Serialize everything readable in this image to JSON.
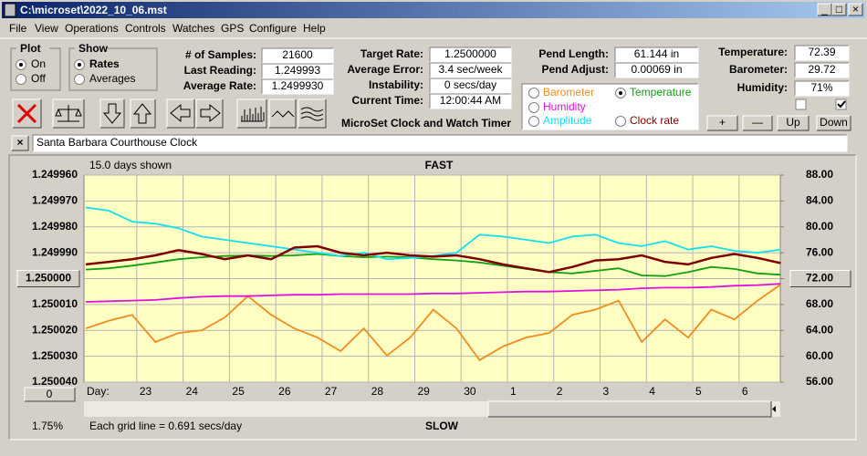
{
  "window": {
    "title": "C:\\microset\\2022_10_06.mst"
  },
  "menu": [
    "File",
    "View",
    "Operations",
    "Controls",
    "Watches",
    "GPS",
    "Configure",
    "Help"
  ],
  "plot": {
    "label": "Plot",
    "options": [
      "On",
      "Off"
    ]
  },
  "show": {
    "label": "Show",
    "options": [
      "Rates",
      "Averages"
    ]
  },
  "fields": [
    {
      "label": "# of Samples:",
      "value": "21600"
    },
    {
      "label": "Last Reading:",
      "value": "1.249993"
    },
    {
      "label": "Average Rate:",
      "value": "1.2499930"
    },
    {
      "label": "Target Rate:",
      "value": "1.2500000"
    },
    {
      "label": "Average Error:",
      "value": "3.4 sec/week"
    },
    {
      "label": "Instability:",
      "value": "0 secs/day"
    },
    {
      "label": "Current Time:",
      "value": "12:00:44 AM"
    },
    {
      "label": "Pend Length:",
      "value": "61.144 in"
    },
    {
      "label": "Pend Adjust:",
      "value": "0.00069 in"
    },
    {
      "label": "Temperature:",
      "value": "72.39"
    },
    {
      "label": "Barometer:",
      "value": "29.72"
    },
    {
      "label": "Humidity:",
      "value": "71%"
    }
  ],
  "app_title": "MicroSet Clock and Watch Timer",
  "buttons": [
    "+",
    "—",
    "Up",
    "Down"
  ],
  "clock_name": "Santa Barbara Courthouse Clock",
  "chart_data": {
    "type": "line",
    "days_shown": "15.0 days shown",
    "top_label": "FAST",
    "bottom_label": "SLOW",
    "x_label": "Day:",
    "footnote": "Each grid line = 0.691 secs/day",
    "offset_button": "0",
    "percent": "1.75%",
    "grid": true,
    "xlim": [
      21.86,
      36.89
    ],
    "xticks": [
      23,
      24,
      25,
      26,
      27,
      28,
      29,
      30,
      {
        "value": 31,
        "label": "1"
      },
      {
        "value": 32,
        "label": "2"
      },
      {
        "value": 33,
        "label": "3"
      },
      {
        "value": 34,
        "label": "4"
      },
      {
        "value": 35,
        "label": "5"
      },
      {
        "value": 36,
        "label": "6"
      }
    ],
    "ylim": [
      1.25004,
      1.24996
    ],
    "yticks": [
      {
        "value": 1.24996,
        "label": "1.249960"
      },
      {
        "value": 1.24997,
        "label": "1.249970"
      },
      {
        "value": 1.24998,
        "label": "1.249980"
      },
      {
        "value": 1.24999,
        "label": "1.249990"
      },
      {
        "value": 1.25,
        "label": "1.250000"
      },
      {
        "value": 1.25001,
        "label": "1.250010"
      },
      {
        "value": 1.25002,
        "label": "1.250020"
      },
      {
        "value": 1.25003,
        "label": "1.250030"
      },
      {
        "value": 1.25004,
        "label": "1.250040"
      }
    ],
    "y2lim": [
      56,
      88
    ],
    "y2ticks": [
      {
        "value": 88,
        "label": "88.00"
      },
      {
        "value": 84,
        "label": "84.00"
      },
      {
        "value": 80,
        "label": "80.00"
      },
      {
        "value": 76,
        "label": "76.00"
      },
      {
        "value": 72,
        "label": "72.00"
      },
      {
        "value": 68,
        "label": "68.00"
      },
      {
        "value": 64,
        "label": "64.00"
      },
      {
        "value": 60,
        "label": "60.00"
      },
      {
        "value": 56,
        "label": "56.00"
      }
    ],
    "x": [
      21.9,
      22.4,
      22.9,
      23.4,
      23.9,
      24.4,
      24.9,
      25.4,
      25.9,
      26.4,
      26.9,
      27.4,
      27.9,
      28.4,
      28.9,
      29.4,
      29.9,
      30.4,
      30.9,
      31.4,
      31.9,
      32.4,
      32.9,
      33.4,
      33.9,
      34.4,
      34.9,
      35.4,
      35.9,
      36.4,
      36.9
    ],
    "series": [
      {
        "name": "Barometer",
        "color": "#f08c20",
        "axis": "y2",
        "values": [
          64.3,
          65.5,
          66.4,
          62.2,
          63.6,
          64.0,
          66.0,
          69.3,
          66.4,
          64.3,
          62.9,
          60.8,
          64.3,
          60.1,
          62.9,
          67.2,
          64.3,
          59.4,
          61.5,
          62.9,
          63.6,
          66.4,
          67.2,
          68.6,
          62.2,
          65.7,
          62.9,
          67.2,
          65.7,
          68.6,
          71.1
        ]
      },
      {
        "name": "Temperature",
        "color": "#10a010",
        "axis": "y2",
        "values": [
          73.4,
          73.6,
          74.0,
          74.5,
          75.0,
          75.3,
          75.5,
          75.6,
          75.5,
          75.6,
          75.8,
          75.5,
          75.3,
          75.4,
          75.3,
          75.0,
          74.8,
          74.5,
          74.0,
          73.5,
          73.0,
          72.8,
          73.2,
          73.6,
          72.5,
          72.4,
          73.0,
          73.8,
          73.5,
          72.8,
          72.6
        ]
      },
      {
        "name": "Humidity",
        "color": "#e010e0",
        "axis": "y2",
        "values": [
          68.4,
          68.5,
          68.6,
          68.7,
          69.0,
          69.2,
          69.3,
          69.3,
          69.4,
          69.5,
          69.5,
          69.6,
          69.6,
          69.6,
          69.6,
          69.7,
          69.7,
          69.8,
          69.9,
          70.0,
          70.0,
          70.1,
          70.2,
          70.3,
          70.5,
          70.6,
          70.6,
          70.7,
          70.9,
          71.0,
          71.2
        ]
      },
      {
        "name": "Amplitude",
        "color": "#10e0f0",
        "axis": "y2",
        "values": [
          83.0,
          82.5,
          80.8,
          80.5,
          79.8,
          78.5,
          78.0,
          77.5,
          77.0,
          76.5,
          76.0,
          75.5,
          76.0,
          75.0,
          75.2,
          75.5,
          76.0,
          78.8,
          78.5,
          78.0,
          77.5,
          78.5,
          78.8,
          77.5,
          77.0,
          77.8,
          76.5,
          77.0,
          76.3,
          76.0,
          76.5
        ]
      },
      {
        "name": "Clock rate",
        "color": "#800000",
        "axis": "y",
        "values": [
          1.2499945,
          1.2499935,
          1.2499925,
          1.249991,
          1.249989,
          1.2499905,
          1.2499925,
          1.249991,
          1.2499925,
          1.249988,
          1.2499875,
          1.24999,
          1.249991,
          1.24999,
          1.249991,
          1.2499915,
          1.249991,
          1.2499925,
          1.2499945,
          1.249996,
          1.2499975,
          1.2499955,
          1.249993,
          1.2499925,
          1.249991,
          1.2499935,
          1.2499945,
          1.249992,
          1.2499905,
          1.249992,
          1.249994
        ]
      }
    ]
  }
}
